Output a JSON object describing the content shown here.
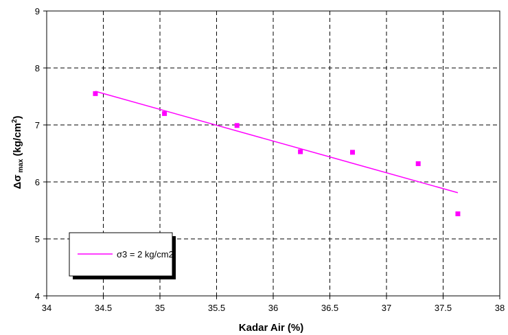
{
  "chart_data": {
    "type": "scatter",
    "xlabel": "Kadar Air (%)",
    "ylabel_parts": {
      "delta": "Δσ",
      "sub": " max",
      "unit_open": " (kg/cm",
      "sup": "2",
      "unit_close": ")"
    },
    "xlim": [
      34,
      38
    ],
    "ylim": [
      4,
      9
    ],
    "x_ticks": [
      34,
      34.5,
      35,
      35.5,
      36,
      36.5,
      37,
      37.5,
      38
    ],
    "y_ticks": [
      4,
      5,
      6,
      7,
      8,
      9
    ],
    "grid": true,
    "legend_placement": "bottom-left",
    "series": [
      {
        "name": "σ3 = 2 kg/cm2",
        "color": "#ff00ff",
        "points": [
          [
            34.43,
            7.55
          ],
          [
            35.04,
            7.2
          ],
          [
            35.68,
            6.99
          ],
          [
            36.24,
            6.53
          ],
          [
            36.7,
            6.52
          ],
          [
            37.28,
            6.32
          ],
          [
            37.63,
            5.44
          ]
        ],
        "trendline": [
          [
            34.43,
            7.59
          ],
          [
            37.63,
            5.81
          ]
        ]
      }
    ]
  }
}
